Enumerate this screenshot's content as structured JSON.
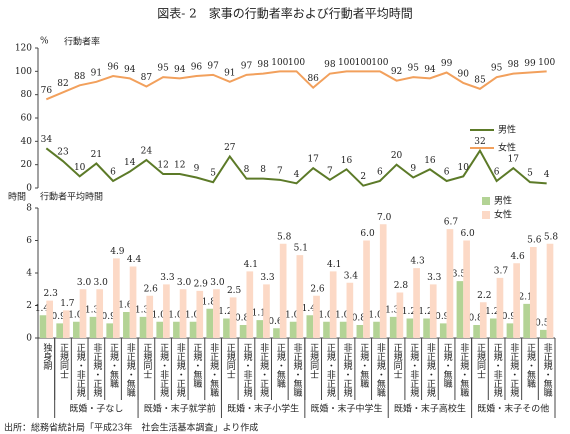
{
  "title": "図表- 2　家事の行動者率および行動者平均時間",
  "source": "出所：総務省統計局「平成23年　社会生活基本調査」より作成",
  "chart_data": [
    {
      "type": "line",
      "y_unit": "%",
      "y_label": "行動者率",
      "ylim": [
        0,
        120
      ],
      "yticks": [
        0,
        20,
        40,
        60,
        80,
        100,
        120
      ],
      "series": [
        {
          "name": "男性",
          "color": "#5c7a28",
          "values": [
            34,
            23,
            10,
            21,
            6,
            14,
            24,
            12,
            12,
            9,
            5,
            27,
            8,
            8,
            7,
            4,
            17,
            7,
            16,
            2,
            6,
            20,
            9,
            16,
            6,
            10,
            32,
            6,
            17,
            5,
            4
          ]
        },
        {
          "name": "女性",
          "color": "#f2a05c",
          "values": [
            76,
            82,
            88,
            91,
            96,
            94,
            87,
            95,
            94,
            96,
            97,
            91,
            97,
            98,
            100,
            100,
            86,
            98,
            100,
            100,
            100,
            92,
            95,
            94,
            99,
            90,
            85,
            95,
            98,
            99,
            100
          ]
        }
      ]
    },
    {
      "type": "bar",
      "y_unit": "時間",
      "y_label": "行動者平均時間",
      "ylim": [
        0,
        8
      ],
      "yticks": [
        0,
        2,
        4,
        6,
        8
      ],
      "categories": [
        "独身期",
        "正規同士",
        "正規・非正規",
        "非正規・正規",
        "正規・無職",
        "非正規・無職",
        "正規同士",
        "正規・非正規",
        "非正規・正規",
        "正規・無職",
        "非正規・無職",
        "正規同士",
        "正規・非正規",
        "非正規・正規",
        "正規・無職",
        "非正規・無職",
        "正規同士",
        "正規・非正規",
        "非正規・正規",
        "正規・無職",
        "非正規・無職",
        "正規同士",
        "正規・非正規",
        "非正規・正規",
        "正規・無職",
        "非正規・無職",
        "正規同士",
        "正規・非正規",
        "非正規・正規",
        "正規・無職",
        "非正規・無職"
      ],
      "category_groups": [
        {
          "label": "既婚・子なし",
          "size": 5
        },
        {
          "label": "既婚・末子就学前",
          "size": 5
        },
        {
          "label": "既婚・末子小学生",
          "size": 5
        },
        {
          "label": "既婚・末子中学生",
          "size": 5
        },
        {
          "label": "既婚・末子高校生",
          "size": 5
        },
        {
          "label": "既婚・末子その他",
          "size": 5
        }
      ],
      "series": [
        {
          "name": "男性",
          "color": "#b3d395",
          "values": [
            1.4,
            0.9,
            1.0,
            1.3,
            0.9,
            1.6,
            1.3,
            1.0,
            1.0,
            1.0,
            1.8,
            1.2,
            0.8,
            1.1,
            0.6,
            1.0,
            1.4,
            1.0,
            1.0,
            0.8,
            1.0,
            1.3,
            1.2,
            1.2,
            0.9,
            3.5,
            0.8,
            1.2,
            0.9,
            2.1,
            0.5
          ],
          "value_labels": [
            "1.4",
            "0.9",
            "1.0",
            "1.3",
            "0.9",
            "1.6",
            "1.3",
            "1.0",
            "1.0",
            "1.0",
            "1.8",
            "1.2",
            "0.8",
            "1.1",
            "0.6",
            "1.0",
            "1.4",
            "1.0",
            "1.0",
            "0.8",
            "1.0",
            "1.3",
            "1.2",
            "1.2",
            "0.9",
            "3.5",
            "0.8",
            "1.2",
            "0.9",
            "2.1",
            "0.5"
          ]
        },
        {
          "name": "女性",
          "color": "#fcd9c6",
          "values": [
            2.3,
            1.7,
            3.0,
            3.0,
            4.9,
            4.4,
            2.6,
            3.3,
            3.0,
            2.9,
            3.0,
            2.5,
            4.1,
            3.3,
            5.8,
            5.1,
            2.6,
            4.1,
            3.4,
            6.0,
            7.0,
            2.8,
            4.3,
            3.3,
            6.7,
            6.0,
            2.2,
            3.7,
            4.6,
            5.6,
            5.8
          ],
          "value_labels": [
            "2.3",
            "1.7",
            "3.0",
            "3.0",
            "4.9",
            "4.4",
            "2.6",
            "3.3",
            "3.0",
            "2.9",
            "3.0",
            "2.5",
            "4.1",
            "3.3",
            "5.8",
            "5.1",
            "2.6",
            "4.1",
            "3.4",
            "6.0",
            "7.0",
            "2.8",
            "4.3",
            "3.3",
            "6.7",
            "6.0",
            "2.2",
            "3.7",
            "4.6",
            "5.6",
            "5.8"
          ]
        }
      ]
    }
  ]
}
